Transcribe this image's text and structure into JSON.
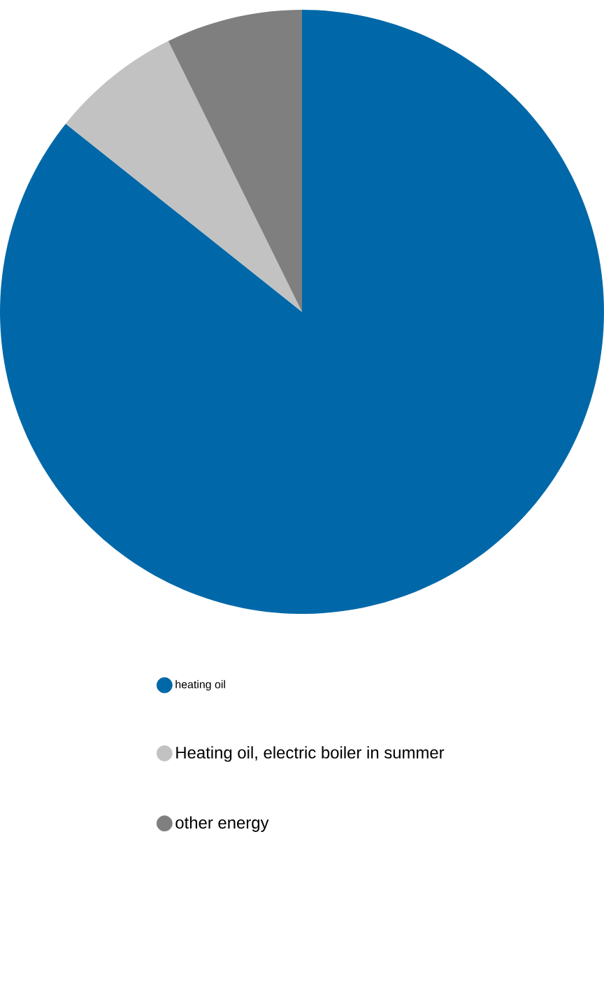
{
  "chart_data": {
    "type": "pie",
    "categories": [
      "heating oil",
      "Heating oil, electric boiler in summer",
      "other energy"
    ],
    "values": [
      85.7,
      7.0,
      7.3
    ],
    "colors": [
      "#0068a8",
      "#c2c2c2",
      "#7f7f7f"
    ],
    "legend": "bottom"
  }
}
